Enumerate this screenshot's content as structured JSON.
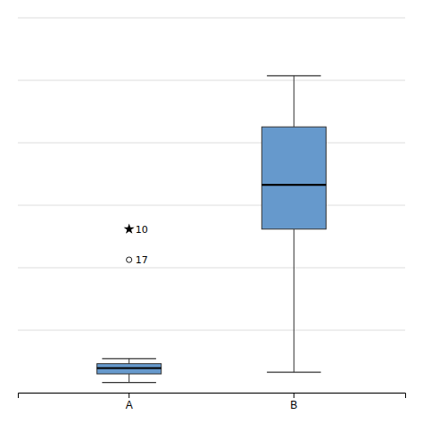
{
  "chart_data": {
    "type": "box",
    "categories": [
      "A",
      "B"
    ],
    "boxes": [
      {
        "whisker_low": 0.3,
        "q1": 0.55,
        "median": 0.72,
        "q3": 0.85,
        "whisker_high": 1.0,
        "outliers": [
          {
            "value": 4.8,
            "label": "10",
            "marker": "star"
          },
          {
            "value": 3.9,
            "label": "17",
            "marker": "circle"
          }
        ]
      },
      {
        "whisker_low": 0.6,
        "q1": 4.8,
        "median": 6.1,
        "q3": 7.8,
        "whisker_high": 9.3
      }
    ],
    "color": "#6699CC",
    "ylim": [
      0,
      11
    ],
    "yticks": [
      0,
      1.8333333333333333,
      3.6666666666666665,
      5.5,
      7.333333333333333,
      9.166666666666666,
      11
    ],
    "grid": true,
    "tick_labels": "x"
  }
}
